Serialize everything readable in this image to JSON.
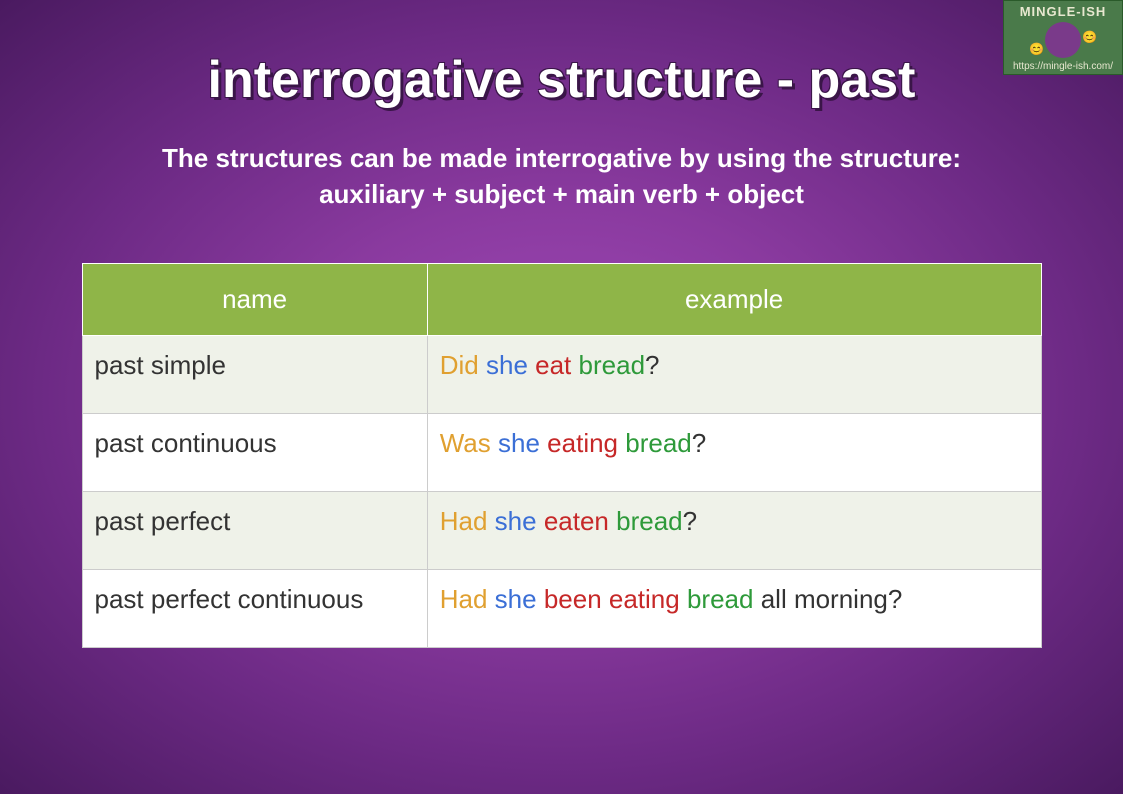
{
  "logo": {
    "brand": "MINGLE-ISH",
    "url": "https://mingle-ish.com/",
    "emoji_left": "😊",
    "emoji_right": "😊"
  },
  "title": "interrogative structure - past",
  "subtitle_line1": "The structures can be made interrogative by using the structure:",
  "subtitle_line2": "auxiliary + subject + main verb + object",
  "colors": {
    "auxiliary": "#e0a030",
    "subject": "#3b6fd6",
    "main_verb": "#c62828",
    "object": "#2e9a3a",
    "extra": "#333333",
    "punctuation": "#333333",
    "header_bg": "#8fb548",
    "row_odd_bg": "#eff2e9",
    "row_even_bg": "#ffffff"
  },
  "table": {
    "headers": {
      "name": "name",
      "example": "example"
    },
    "rows": [
      {
        "name": "past simple",
        "parts": [
          {
            "text": "Did",
            "role": "auxiliary"
          },
          {
            "text": " ",
            "role": "space"
          },
          {
            "text": "she",
            "role": "subject"
          },
          {
            "text": " ",
            "role": "space"
          },
          {
            "text": "eat",
            "role": "main_verb"
          },
          {
            "text": " ",
            "role": "space"
          },
          {
            "text": "bread",
            "role": "object"
          },
          {
            "text": "?",
            "role": "punctuation"
          }
        ]
      },
      {
        "name": "past continuous",
        "parts": [
          {
            "text": "Was",
            "role": "auxiliary"
          },
          {
            "text": " ",
            "role": "space"
          },
          {
            "text": "she",
            "role": "subject"
          },
          {
            "text": " ",
            "role": "space"
          },
          {
            "text": "eating",
            "role": "main_verb"
          },
          {
            "text": " ",
            "role": "space"
          },
          {
            "text": "bread",
            "role": "object"
          },
          {
            "text": "?",
            "role": "punctuation"
          }
        ]
      },
      {
        "name": "past perfect",
        "parts": [
          {
            "text": "Had",
            "role": "auxiliary"
          },
          {
            "text": " ",
            "role": "space"
          },
          {
            "text": "she",
            "role": "subject"
          },
          {
            "text": " ",
            "role": "space"
          },
          {
            "text": "eaten",
            "role": "main_verb"
          },
          {
            "text": " ",
            "role": "space"
          },
          {
            "text": "bread",
            "role": "object"
          },
          {
            "text": "?",
            "role": "punctuation"
          }
        ]
      },
      {
        "name": "past perfect continuous",
        "parts": [
          {
            "text": "Had",
            "role": "auxiliary"
          },
          {
            "text": " ",
            "role": "space"
          },
          {
            "text": "she",
            "role": "subject"
          },
          {
            "text": " ",
            "role": "space"
          },
          {
            "text": "been eating",
            "role": "main_verb"
          },
          {
            "text": " ",
            "role": "space"
          },
          {
            "text": "bread",
            "role": "object"
          },
          {
            "text": " ",
            "role": "space"
          },
          {
            "text": "all morning",
            "role": "extra"
          },
          {
            "text": "?",
            "role": "punctuation"
          }
        ]
      }
    ]
  }
}
